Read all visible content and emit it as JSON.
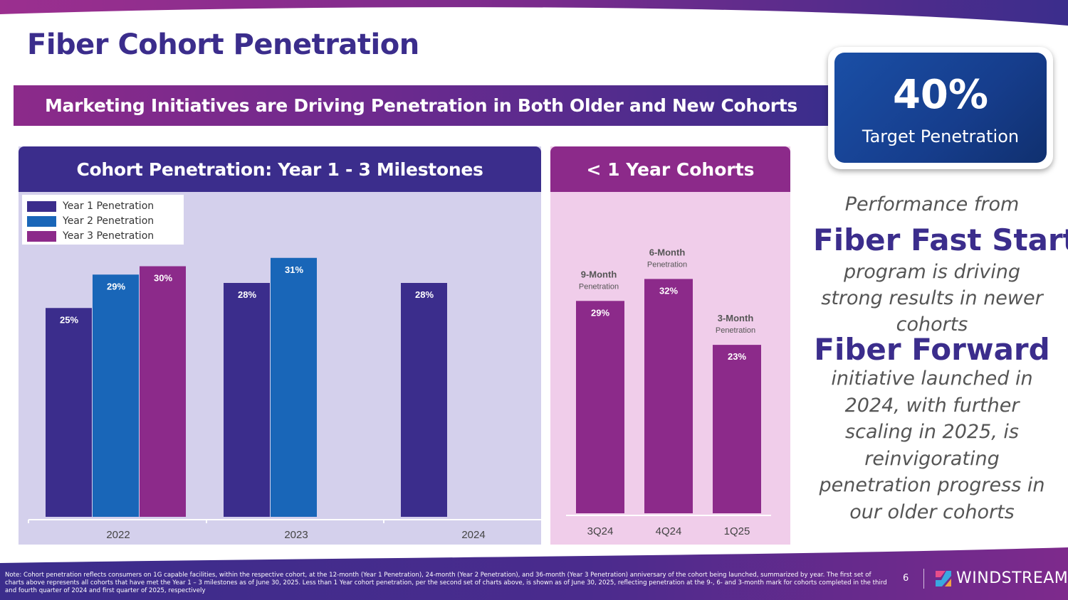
{
  "title": "Fiber Cohort Penetration",
  "banner": "Marketing Initiatives are Driving Penetration in Both Older and New Cohorts",
  "target": {
    "value": "40%",
    "label": "Target Penetration"
  },
  "panels": {
    "left_title": "Cohort Penetration: Year 1 - 3 Milestones",
    "right_title": "< 1 Year Cohorts"
  },
  "legend": [
    "Year 1 Penetration",
    "Year 2 Penetration",
    "Year 3 Penetration"
  ],
  "side": {
    "perf_line": "Performance from",
    "ffs_title": "Fiber Fast Start",
    "ffs_desc": "program is driving strong results in newer cohorts",
    "ff_title": "Fiber Forward",
    "ff_desc": "initiative launched in 2024, with further scaling in 2025, is reinvigorating penetration progress in our older cohorts"
  },
  "colors": {
    "year1": "#3b2d8c",
    "year2": "#1966b8",
    "year3": "#8c2a8a",
    "recent": "#8c2a8a"
  },
  "chart_data": [
    {
      "type": "bar",
      "title": "Cohort Penetration: Year 1 - 3 Milestones",
      "categories": [
        "2022",
        "2023",
        "2024"
      ],
      "series": [
        {
          "name": "Year 1 Penetration",
          "values": [
            25,
            28,
            28
          ],
          "labels": [
            "25%",
            "28%",
            "28%"
          ]
        },
        {
          "name": "Year 2 Penetration",
          "values": [
            29,
            31,
            null
          ],
          "labels": [
            "29%",
            "31%",
            ""
          ]
        },
        {
          "name": "Year 3 Penetration",
          "values": [
            30,
            null,
            null
          ],
          "labels": [
            "30%",
            "",
            ""
          ]
        }
      ],
      "ylim": [
        0,
        35
      ],
      "legend": "top-left",
      "grid": false
    },
    {
      "type": "bar",
      "title": "< 1 Year Cohorts",
      "categories": [
        "3Q24",
        "4Q24",
        "1Q25"
      ],
      "values": [
        29,
        32,
        23
      ],
      "labels": [
        "29%",
        "32%",
        "23%"
      ],
      "annotations": [
        {
          "line1": "9-Month",
          "line2": "Penetration"
        },
        {
          "line1": "6-Month",
          "line2": "Penetration"
        },
        {
          "line1": "3-Month",
          "line2": "Penetration"
        }
      ],
      "ylim": [
        0,
        35
      ],
      "grid": false
    }
  ],
  "footer": {
    "note": "Note: Cohort penetration reflects consumers on 1G capable facilities, within the respective cohort, at the 12-month (Year 1 Penetration), 24-month (Year 2 Penetration), and 36-month (Year 3 Penetration) anniversary of the cohort being launched, summarized by year. The first set of charts above represents all cohorts that have met the Year 1 – 3 milestones as of June 30, 2025. Less than 1 Year cohort penetration, per the second set of charts above, is shown as of June 30, 2025, reflecting penetration at the 9-, 6- and 3-month mark for cohorts completed in the third and fourth quarter of 2024 and first quarter of 2025, respectively",
    "page_number": "6",
    "brand": "WINDSTREAM"
  }
}
